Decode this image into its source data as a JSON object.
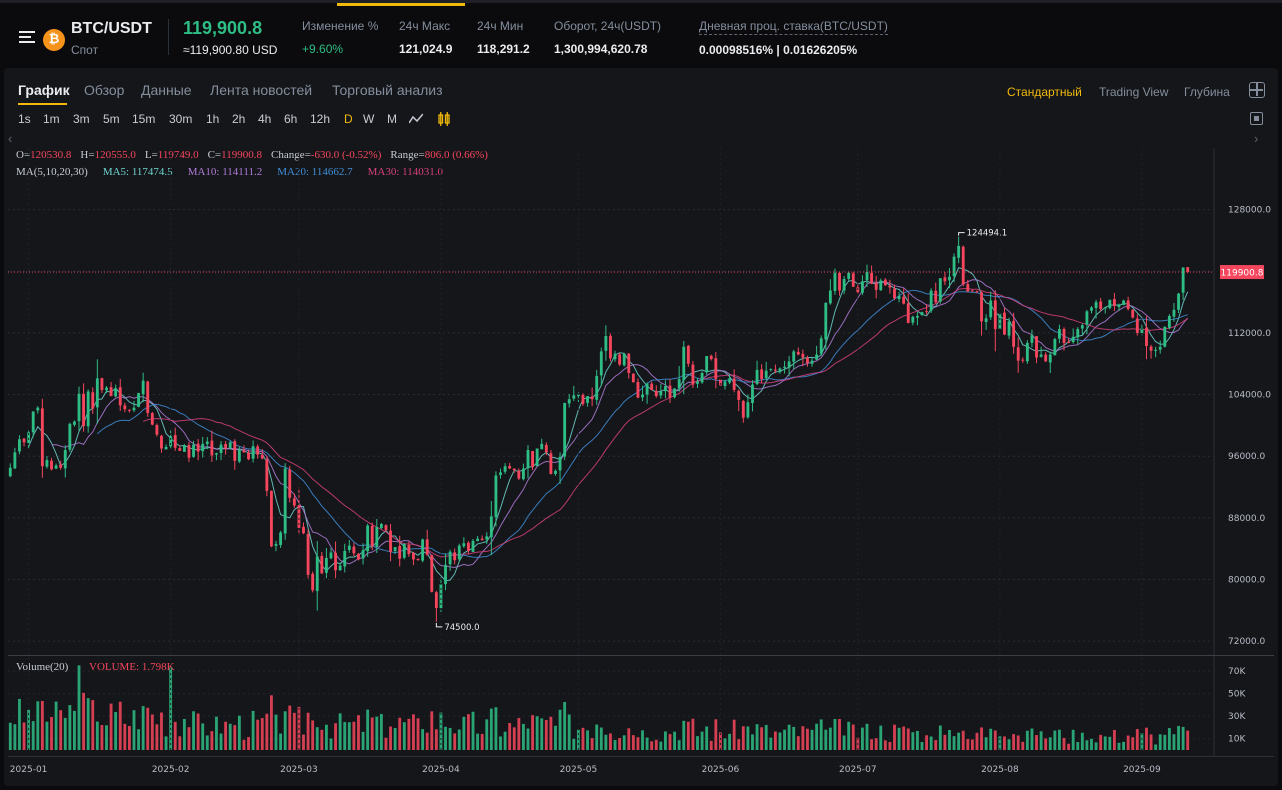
{
  "header": {
    "pair": "BTC/USDT",
    "market_type": "Спот",
    "coin_icon": "bitcoin-icon",
    "coin_symbol": "₿",
    "last_price": "119,900.8",
    "last_price_usd": "≈119,900.80 USD",
    "stats": [
      {
        "label": "Изменение %",
        "value": "+9.60%",
        "positive": true
      },
      {
        "label": "24ч Макс",
        "value": "121,024.9"
      },
      {
        "label": "24ч Мин",
        "value": "118,291.2"
      },
      {
        "label": "Оборот, 24ч(USDT)",
        "value": "1,300,994,620.78"
      },
      {
        "label": "Дневная проц. ставка(BTC/USDT)",
        "value": "0.00098516% | 0.01626205%"
      }
    ]
  },
  "tabs": [
    "График",
    "Обзор",
    "Данные",
    "Лента новостей",
    "Торговый анализ"
  ],
  "active_tab": "График",
  "views": [
    "Стандартный",
    "Trading View",
    "Глубина"
  ],
  "active_view": "Стандартный",
  "intervals": [
    "1s",
    "1m",
    "3m",
    "5m",
    "15m",
    "30m",
    "1h",
    "2h",
    "4h",
    "6h",
    "12h",
    "D",
    "W",
    "M"
  ],
  "active_interval": "D",
  "chart_toolbar_icons": [
    "line-chart-icon",
    "candle-settings-icon"
  ],
  "legend": {
    "ohlc": [
      {
        "k": "O=",
        "v": "120530.8"
      },
      {
        "k": "H=",
        "v": "120555.0"
      },
      {
        "k": "L=",
        "v": "119749.0"
      },
      {
        "k": "C=",
        "v": "119900.8"
      },
      {
        "k": "Change=",
        "v": "-630.0 (-0.52%)"
      },
      {
        "k": "Range=",
        "v": "806.0 (0.66%)"
      }
    ],
    "ma_label": "MA(5,10,20,30)",
    "ma": [
      {
        "k": "MA5:",
        "v": "117474.5",
        "color": "#6fd3cf"
      },
      {
        "k": "MA10:",
        "v": "114111.2",
        "color": "#b07cd8"
      },
      {
        "k": "MA20:",
        "v": "114662.7",
        "color": "#3f8ed8"
      },
      {
        "k": "MA30:",
        "v": "114031.0",
        "color": "#d6407e"
      }
    ],
    "volume_label": "Volume(20)",
    "volume_value_label": "VOLUME: 1.798K"
  },
  "colors": {
    "up": "#2ebd85",
    "down": "#f6465d",
    "accent": "#f0b90b"
  },
  "chart_data": {
    "type": "candlestick",
    "interval": "D",
    "price_axis": {
      "ticks": [
        72000,
        80000,
        88000,
        96000,
        104000,
        112000,
        120000,
        128000
      ],
      "tick_labels": [
        "72000.0",
        "80000.0",
        "88000.0",
        "96000.0",
        "104000.0",
        "112000.0",
        "120000.0",
        "128000.0"
      ],
      "range": [
        70200,
        136000
      ]
    },
    "time_axis": {
      "labels": [
        "2025-01",
        "2025-02",
        "2025-03",
        "2025-04",
        "2025-05",
        "2025-06",
        "2025-07",
        "2025-08",
        "2025-09"
      ]
    },
    "volume_axis": {
      "ticks": [
        10000,
        30000,
        50000,
        70000
      ],
      "tick_labels": [
        "10K",
        "30K",
        "50K",
        "70K"
      ]
    },
    "last_price_label": "119900.8",
    "last_price": 119900.8,
    "max_label": "124494.1",
    "min_label": "74500.0",
    "ma_periods": [
      5,
      10,
      20,
      30
    ],
    "closes": [
      94500,
      96500,
      98200,
      97800,
      99100,
      101800,
      102300,
      94700,
      95500,
      94300,
      94800,
      94500,
      96800,
      100200,
      100500,
      104100,
      99900,
      104400,
      102200,
      106100,
      104600,
      104900,
      103800,
      104800,
      102600,
      102100,
      101900,
      102300,
      104200,
      105800,
      101600,
      100100,
      98800,
      97000,
      97200,
      98600,
      97100,
      96700,
      97400,
      95800,
      97500,
      96600,
      97600,
      97900,
      96100,
      96400,
      97500,
      97000,
      97800,
      95400,
      96900,
      96500,
      95600,
      97300,
      96200,
      95700,
      91500,
      84300,
      84600,
      86100,
      94400,
      90600,
      89600,
      86700,
      86000,
      80600,
      78600,
      83000,
      80800,
      82800,
      83500,
      81200,
      81800,
      83700,
      84400,
      83400,
      82600,
      83800,
      87000,
      84300,
      86800,
      87200,
      86400,
      83600,
      84200,
      82700,
      84600,
      83300,
      82600,
      82500,
      85200,
      83200,
      78400,
      76300,
      79400,
      81900,
      83600,
      82500,
      84400,
      84700,
      83700,
      85000,
      85300,
      85100,
      85600,
      88200,
      93500,
      93900,
      94700,
      94400,
      94200,
      93100,
      94400,
      96800,
      94600,
      97000,
      97600,
      96500,
      93700,
      94100,
      95900,
      102900,
      103400,
      103900,
      104000,
      102800,
      103800,
      103400,
      106400,
      109600,
      111600,
      108700,
      109300,
      107900,
      109300,
      106800,
      105600,
      103600,
      104000,
      105400,
      104600,
      103800,
      104400,
      105100,
      103600,
      104800,
      106000,
      110200,
      108000,
      105300,
      105700,
      106800,
      109000,
      108600,
      106000,
      105200,
      105700,
      106100,
      104600,
      103300,
      101000,
      103000,
      105300,
      107200,
      106000,
      107100,
      107300,
      107100,
      107400,
      107600,
      108300,
      109600,
      109200,
      108800,
      108100,
      108400,
      109200,
      111300,
      115900,
      117500,
      119800,
      117500,
      119000,
      119800,
      118000,
      117300,
      118700,
      119900,
      118400,
      117600,
      118800,
      118200,
      117900,
      116500,
      116800,
      115800,
      113300,
      114100,
      114200,
      114700,
      114800,
      117500,
      116000,
      119100,
      118700,
      119300,
      121900,
      123300,
      118300,
      117400,
      117400,
      117400,
      113500,
      113900,
      116200,
      112500,
      114500,
      111800,
      113500,
      110200,
      108400,
      108400,
      110700,
      111700,
      108800,
      109200,
      108300,
      109200,
      111200,
      112500,
      110700,
      110700,
      111500,
      112500,
      113000,
      114800,
      115300,
      116000,
      115100,
      115300,
      116300,
      115500,
      115700,
      116200,
      115100,
      114000,
      112000,
      112600,
      110300,
      109700,
      109800,
      110200,
      112800,
      114200,
      115000,
      117100,
      120500,
      119900
    ]
  }
}
